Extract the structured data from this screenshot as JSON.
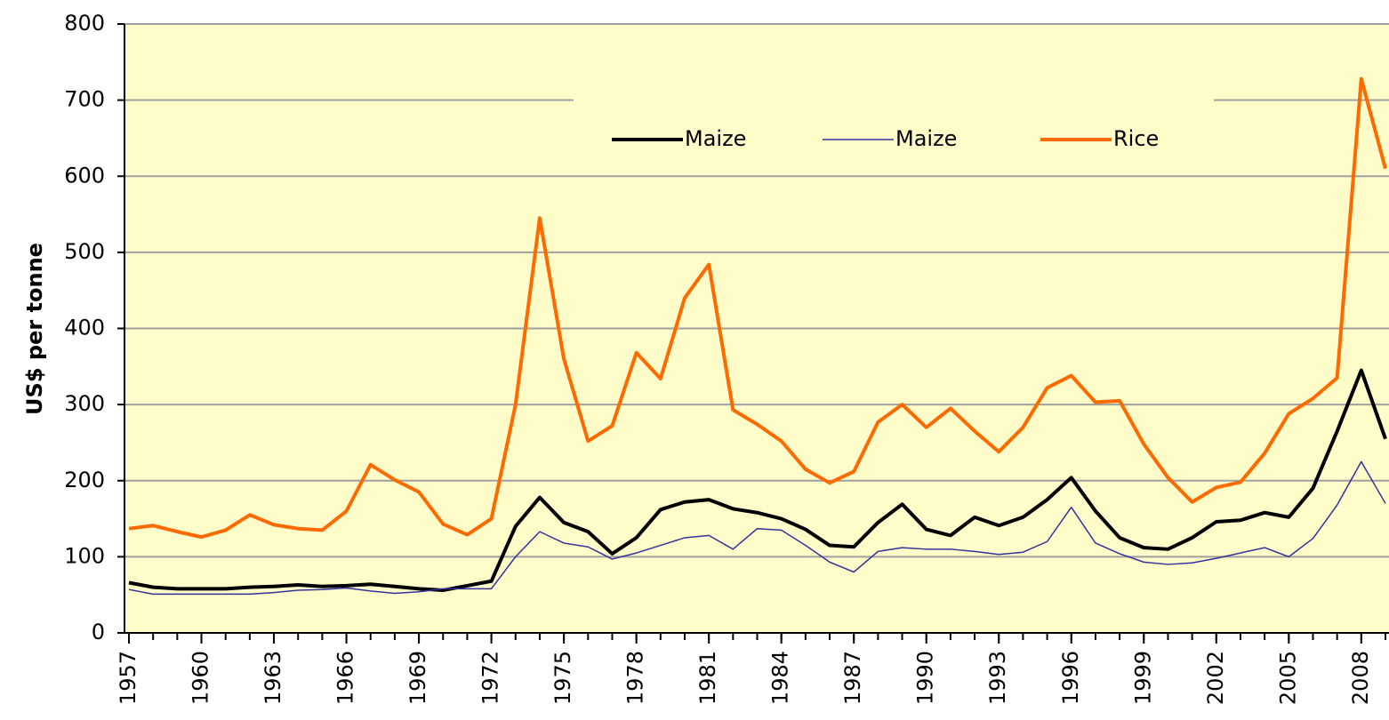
{
  "chart_data": {
    "type": "line",
    "y_label": "US$  per tonne",
    "x": [
      1957,
      1958,
      1959,
      1960,
      1961,
      1962,
      1963,
      1964,
      1965,
      1966,
      1967,
      1968,
      1969,
      1970,
      1971,
      1972,
      1973,
      1974,
      1975,
      1976,
      1977,
      1978,
      1979,
      1980,
      1981,
      1982,
      1983,
      1984,
      1985,
      1986,
      1987,
      1988,
      1989,
      1990,
      1991,
      1992,
      1993,
      1994,
      1995,
      1996,
      1997,
      1998,
      1999,
      2000,
      2001,
      2002,
      2003,
      2004,
      2005,
      2006,
      2007,
      2008,
      2009
    ],
    "series": [
      {
        "name": "Maize",
        "color": "#000000",
        "width": 4,
        "values": [
          66,
          60,
          58,
          58,
          58,
          60,
          61,
          63,
          61,
          62,
          64,
          61,
          58,
          56,
          62,
          68,
          140,
          178,
          145,
          133,
          104,
          125,
          162,
          172,
          175,
          163,
          158,
          150,
          136,
          115,
          113,
          145,
          169,
          136,
          128,
          152,
          141,
          152,
          175,
          204,
          160,
          125,
          112,
          110,
          125,
          146,
          148,
          158,
          152,
          190,
          265,
          345,
          255
        ]
      },
      {
        "name": "Maize",
        "color": "#33339a",
        "width": 1.5,
        "values": [
          57,
          51,
          51,
          51,
          51,
          51,
          53,
          56,
          57,
          59,
          55,
          52,
          54,
          58,
          58,
          58,
          100,
          133,
          118,
          113,
          97,
          105,
          115,
          125,
          128,
          110,
          137,
          135,
          115,
          93,
          80,
          107,
          112,
          110,
          110,
          107,
          103,
          106,
          120,
          165,
          118,
          104,
          93,
          90,
          92,
          98,
          105,
          112,
          100,
          124,
          168,
          225,
          170
        ]
      },
      {
        "name": "Rice",
        "color": "#ff6a00",
        "width": 4,
        "values": [
          137,
          141,
          133,
          126,
          135,
          155,
          142,
          137,
          135,
          160,
          221,
          201,
          185,
          143,
          129,
          150,
          300,
          545,
          360,
          252,
          272,
          368,
          334,
          440,
          484,
          293,
          274,
          252,
          215,
          197,
          212,
          277,
          300,
          270,
          295,
          265,
          238,
          270,
          322,
          338,
          303,
          305,
          248,
          204,
          172,
          191,
          198,
          236,
          288,
          308,
          335,
          728,
          610
        ]
      }
    ],
    "xlim": [
      1957,
      2009
    ],
    "xticks": [
      1957,
      1960,
      1963,
      1966,
      1969,
      1972,
      1975,
      1978,
      1981,
      1984,
      1987,
      1990,
      1993,
      1996,
      1999,
      2002,
      2005,
      2008
    ],
    "ylim": [
      0,
      800
    ],
    "yticks": [
      0,
      100,
      200,
      300,
      400,
      500,
      600,
      700,
      800
    ],
    "grid": true,
    "background": "#fefcc8"
  }
}
